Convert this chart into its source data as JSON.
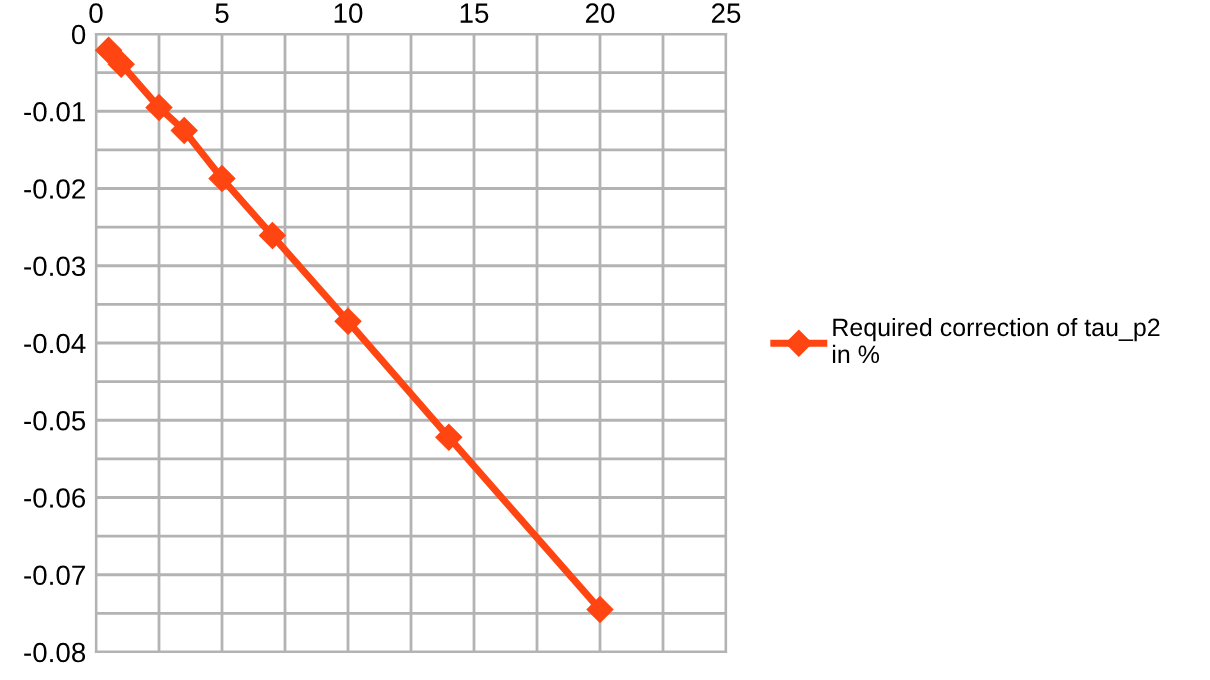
{
  "chart_data": {
    "type": "line",
    "x": [
      0.5,
      1,
      2.5,
      3.5,
      5,
      7,
      10,
      14,
      20
    ],
    "series": [
      {
        "name": "Required correction of tau_p2\nin %",
        "color": "#ff4512",
        "values": [
          -0.0021,
          -0.0039,
          -0.0095,
          -0.0125,
          -0.0187,
          -0.0261,
          -0.0372,
          -0.0522,
          -0.0745
        ]
      }
    ],
    "xlim": [
      0,
      25
    ],
    "xticks": [
      0,
      5,
      10,
      15,
      20,
      25
    ],
    "ylim": [
      -0.08,
      0
    ],
    "yticks": [
      -0.08,
      -0.07,
      -0.06,
      -0.05,
      -0.04,
      -0.03,
      -0.02,
      -0.01,
      0
    ],
    "grid": true,
    "legend": "right",
    "marker": "diamond",
    "line_style": "solid"
  }
}
